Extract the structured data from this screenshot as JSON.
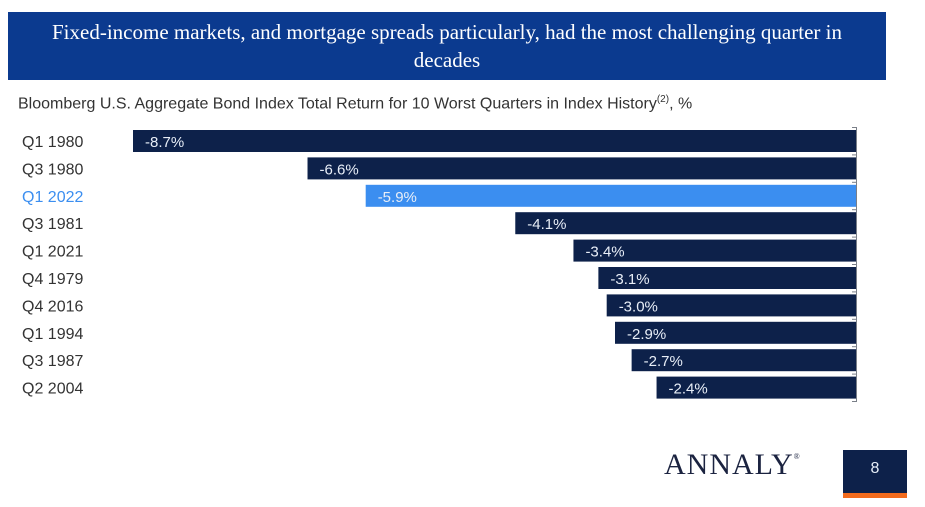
{
  "banner": {
    "title": "Fixed-income markets, and mortgage spreads particularly, had the most challenging quarter in decades"
  },
  "colors": {
    "banner": "#0b3a8f",
    "bar": "#0d214a",
    "highlight_bar": "#3b8ef0",
    "highlight_label": "#3b8ef0",
    "label": "#333333",
    "accent": "#f26b1d"
  },
  "chart_data": {
    "type": "bar",
    "orientation": "horizontal",
    "title": "Bloomberg U.S. Aggregate Bond Index Total Return for 10 Worst Quarters in Index History",
    "title_superscript": "(2)",
    "title_suffix": ", %",
    "categories": [
      "Q1 1980",
      "Q3 1980",
      "Q1 2022",
      "Q3 1981",
      "Q1 2021",
      "Q4 1979",
      "Q4 2016",
      "Q1 1994",
      "Q3 1987",
      "Q2 2004"
    ],
    "values": [
      -8.7,
      -6.6,
      -5.9,
      -4.1,
      -3.4,
      -3.1,
      -3.0,
      -2.9,
      -2.7,
      -2.4
    ],
    "data_labels": [
      "-8.7%",
      "-6.6%",
      "-5.9%",
      "-4.1%",
      "-3.4%",
      "-3.1%",
      "-3.0%",
      "-2.9%",
      "-2.7%",
      "-2.4%"
    ],
    "highlight": "Q1 2022",
    "xlabel": "",
    "ylabel": "",
    "xlim": [
      -8.7,
      0
    ],
    "grid": false,
    "legend": "none"
  },
  "footer": {
    "logo": "ANNALY",
    "logo_mark": "®",
    "page_number": "8"
  }
}
